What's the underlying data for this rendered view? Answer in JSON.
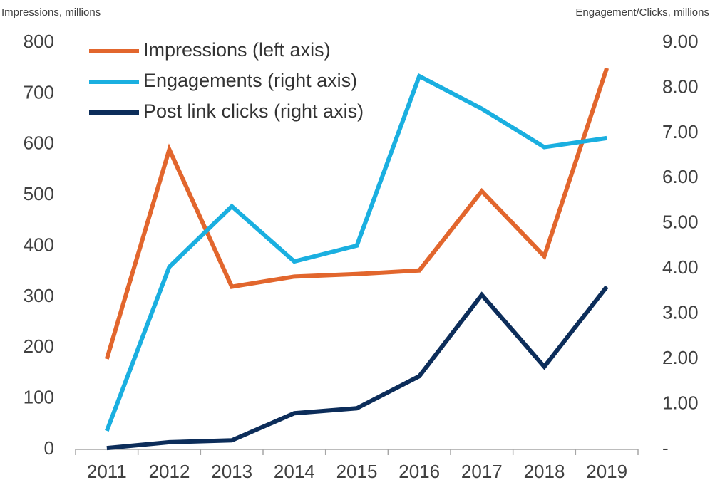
{
  "chart_data": {
    "type": "line",
    "ylabel": "Impressions, millions",
    "y2label": "Engagement/Clicks, millions",
    "categories": [
      "2011",
      "2012",
      "2013",
      "2014",
      "2015",
      "2016",
      "2017",
      "2018",
      "2019"
    ],
    "series": [
      {
        "name": "Impressions (left axis)",
        "color": "#e2662d",
        "values": [
          178,
          590,
          320,
          340,
          345,
          352,
          508,
          380,
          750
        ]
      },
      {
        "name": "Engagements (right axis)",
        "color": "#1aafe0",
        "axis": "y2",
        "values": [
          0.41,
          4.04,
          5.38,
          4.16,
          4.51,
          8.26,
          7.54,
          6.69,
          6.89
        ]
      },
      {
        "name": "Post link clicks (right axis)",
        "color": "#0c2d5a",
        "axis": "y2",
        "values": [
          0.03,
          0.16,
          0.2,
          0.8,
          0.91,
          1.62,
          3.42,
          1.83,
          3.6
        ]
      }
    ],
    "ylim": [
      0,
      800
    ],
    "yticks": [
      0,
      100,
      200,
      300,
      400,
      500,
      600,
      700,
      800
    ],
    "y2lim": [
      0,
      9
    ],
    "y2ticks": [
      {
        "value": 0,
        "label": "-"
      },
      {
        "value": 1,
        "label": "1.00"
      },
      {
        "value": 2,
        "label": "2.00"
      },
      {
        "value": 3,
        "label": "3.00"
      },
      {
        "value": 4,
        "label": "4.00"
      },
      {
        "value": 5,
        "label": "5.00"
      },
      {
        "value": 6,
        "label": "6.00"
      },
      {
        "value": 7,
        "label": "7.00"
      },
      {
        "value": 8,
        "label": "8.00"
      },
      {
        "value": 9,
        "label": "9.00"
      }
    ],
    "grid": false,
    "legend": "upper left"
  }
}
